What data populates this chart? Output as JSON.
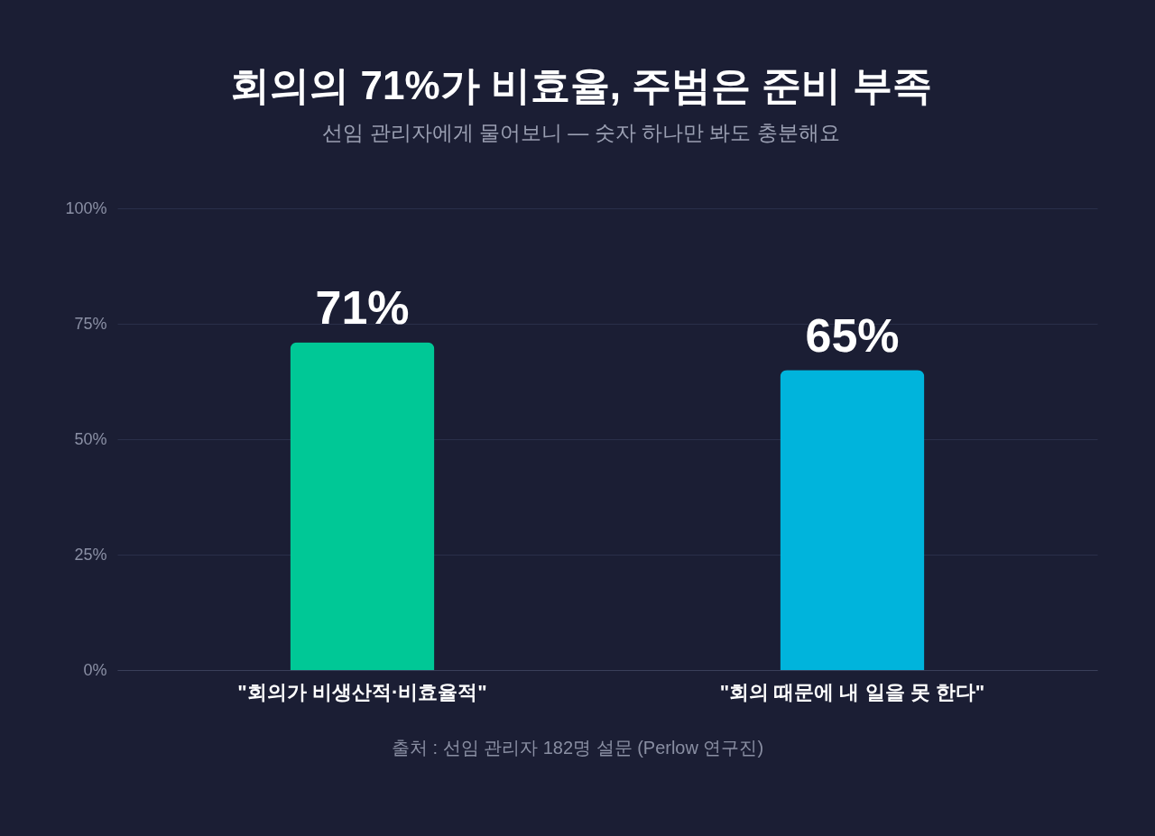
{
  "chart_data": {
    "type": "bar",
    "title": "회의의 71%가 비효율, 주범은 준비 부족",
    "subtitle": "선임 관리자에게 물어보니 — 숫자 하나만 봐도 충분해요",
    "categories": [
      "\"회의가 비생산적·비효율적\"",
      "\"회의 때문에 내 일을 못 한다\""
    ],
    "values": [
      71,
      65
    ],
    "colors": [
      "#00c896",
      "#00b4dc"
    ],
    "value_labels": [
      "71%",
      "65%"
    ],
    "ylim": [
      0,
      100
    ],
    "yticks": [
      {
        "value": 0,
        "label": "0%"
      },
      {
        "value": 25,
        "label": "25%"
      },
      {
        "value": 50,
        "label": "50%"
      },
      {
        "value": 75,
        "label": "75%"
      },
      {
        "value": 100,
        "label": "100%"
      }
    ],
    "grid": "y",
    "annotations": [
      "출처 : 선임 관리자 182명 설문 (Perlow 연구진)"
    ]
  }
}
